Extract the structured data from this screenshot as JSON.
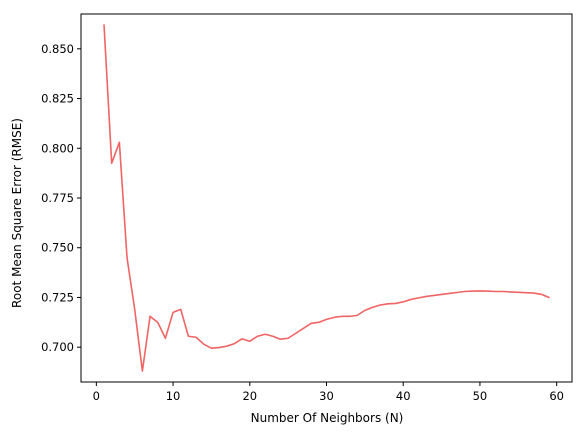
{
  "chart_data": {
    "type": "line",
    "title": "",
    "xlabel": "Number Of Neighbors (N)",
    "ylabel": "Root Mean Square Error (RMSE)",
    "xlim": [
      -2,
      62
    ],
    "ylim": [
      0.6825,
      0.8675
    ],
    "x_ticks": [
      0,
      10,
      20,
      30,
      40,
      50,
      60
    ],
    "y_ticks": [
      0.7,
      0.725,
      0.75,
      0.775,
      0.8,
      0.825,
      0.85
    ],
    "x_tick_labels": [
      "0",
      "10",
      "20",
      "30",
      "40",
      "50",
      "60"
    ],
    "y_tick_labels": [
      "0.700",
      "0.725",
      "0.750",
      "0.775",
      "0.800",
      "0.825",
      "0.850"
    ],
    "grid": false,
    "legend": "none",
    "series": [
      {
        "color": "#f06464",
        "x": [
          1,
          2,
          3,
          4,
          5,
          6,
          7,
          8,
          9,
          10,
          11,
          12,
          13,
          14,
          15,
          16,
          17,
          18,
          19,
          20,
          21,
          22,
          23,
          24,
          25,
          26,
          27,
          28,
          29,
          30,
          31,
          32,
          33,
          34,
          35,
          36,
          37,
          38,
          39,
          40,
          41,
          42,
          43,
          44,
          45,
          46,
          47,
          48,
          49,
          50,
          51,
          52,
          53,
          54,
          55,
          56,
          57,
          58,
          59
        ],
        "y": [
          0.862,
          0.7925,
          0.803,
          0.745,
          0.719,
          0.688,
          0.7155,
          0.7125,
          0.7045,
          0.7175,
          0.719,
          0.7055,
          0.705,
          0.7015,
          0.6995,
          0.6998,
          0.7005,
          0.7018,
          0.7042,
          0.703,
          0.7055,
          0.7065,
          0.7055,
          0.704,
          0.7045,
          0.707,
          0.7095,
          0.712,
          0.7125,
          0.714,
          0.715,
          0.7155,
          0.7155,
          0.716,
          0.7185,
          0.72,
          0.7212,
          0.7218,
          0.722,
          0.7228,
          0.724,
          0.7248,
          0.7255,
          0.726,
          0.7265,
          0.727,
          0.7275,
          0.728,
          0.7282,
          0.7283,
          0.7282,
          0.728,
          0.728,
          0.7278,
          0.7276,
          0.7274,
          0.7272,
          0.7266,
          0.725
        ]
      }
    ]
  }
}
